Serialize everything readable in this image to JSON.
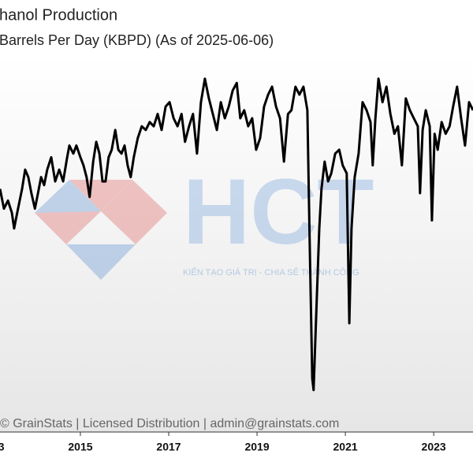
{
  "chart_data": {
    "type": "line",
    "title": "hanol Production",
    "subtitle": "Barrels Per Day (KBPD) (As of 2025-06-06)",
    "footer": "© GrainStats | Licensed Distribution | admin@grainstats.com",
    "watermark": {
      "logo": "HCT",
      "tagline": "KIẾN TẠO GIÁ TRỊ - CHIA SẺ THÀNH CÔNG"
    },
    "x": [
      2013.18,
      2013.27,
      2013.36,
      2013.45,
      2013.5,
      2013.57,
      2013.68,
      2013.75,
      2013.82,
      2013.89,
      2013.97,
      2014.04,
      2014.11,
      2014.18,
      2014.25,
      2014.34,
      2014.43,
      2014.52,
      2014.61,
      2014.7,
      2014.75,
      2014.84,
      2014.91,
      2015.0,
      2015.07,
      2015.14,
      2015.21,
      2015.29,
      2015.36,
      2015.43,
      2015.5,
      2015.57,
      2015.64,
      2015.71,
      2015.79,
      2015.86,
      2015.93,
      2016.0,
      2016.07,
      2016.14,
      2016.21,
      2016.3,
      2016.39,
      2016.48,
      2016.57,
      2016.66,
      2016.75,
      2016.84,
      2016.93,
      2017.02,
      2017.11,
      2017.2,
      2017.29,
      2017.37,
      2017.46,
      2017.55,
      2017.64,
      2017.73,
      2017.82,
      2017.91,
      2018.0,
      2018.09,
      2018.18,
      2018.27,
      2018.36,
      2018.45,
      2018.54,
      2018.62,
      2018.71,
      2018.8,
      2018.89,
      2018.98,
      2019.07,
      2019.16,
      2019.25,
      2019.34,
      2019.43,
      2019.52,
      2019.61,
      2019.7,
      2019.78,
      2019.87,
      2019.96,
      2020.05,
      2020.14,
      2020.19,
      2020.25,
      2020.28,
      2020.34,
      2020.41,
      2020.46,
      2020.53,
      2020.61,
      2020.68,
      2020.77,
      2020.86,
      2020.94,
      2021.03,
      2021.09,
      2021.14,
      2021.21,
      2021.3,
      2021.39,
      2021.48,
      2021.57,
      2021.62,
      2021.68,
      2021.75,
      2021.84,
      2021.93,
      2022.02,
      2022.11,
      2022.19,
      2022.28,
      2022.37,
      2022.46,
      2022.55,
      2022.64,
      2022.69,
      2022.75,
      2022.82,
      2022.91,
      2022.96,
      2023.02,
      2023.09,
      2023.18,
      2023.27,
      2023.36,
      2023.44,
      2023.53,
      2023.62,
      2023.71,
      2023.8,
      2023.89
    ],
    "values": [
      913,
      876,
      891,
      868,
      839,
      868,
      913,
      949,
      935,
      905,
      876,
      905,
      935,
      920,
      949,
      972,
      927,
      949,
      927,
      972,
      994,
      979,
      994,
      972,
      957,
      935,
      898,
      964,
      1001,
      979,
      927,
      927,
      972,
      986,
      1023,
      986,
      979,
      994,
      957,
      935,
      972,
      1008,
      1030,
      1023,
      1038,
      1030,
      1053,
      1023,
      1067,
      1075,
      1045,
      1030,
      1053,
      1001,
      1030,
      1053,
      979,
      1075,
      1119,
      1082,
      1053,
      1023,
      1075,
      1045,
      1067,
      1097,
      1111,
      1045,
      1060,
      1030,
      1045,
      986,
      1008,
      1067,
      1089,
      1104,
      1067,
      1045,
      964,
      1053,
      1060,
      1104,
      1089,
      1104,
      1060,
      824,
      559,
      537,
      677,
      839,
      913,
      964,
      927,
      942,
      979,
      986,
      957,
      942,
      662,
      839,
      935,
      979,
      1075,
      1060,
      1038,
      957,
      1045,
      1119,
      1075,
      1104,
      1053,
      1016,
      1030,
      957,
      1082,
      1060,
      1045,
      1030,
      905,
      1023,
      1060,
      1030,
      854,
      1016,
      986,
      1038,
      1016,
      1030,
      1067,
      1104,
      1045,
      994,
      1075,
      1060
    ],
    "color": "#000000",
    "xlim": [
      2013.18,
      2023.89
    ],
    "ylim": [
      382,
      1266
    ],
    "xticks": [
      2013,
      2015,
      2017,
      2019,
      2021,
      2023
    ]
  }
}
